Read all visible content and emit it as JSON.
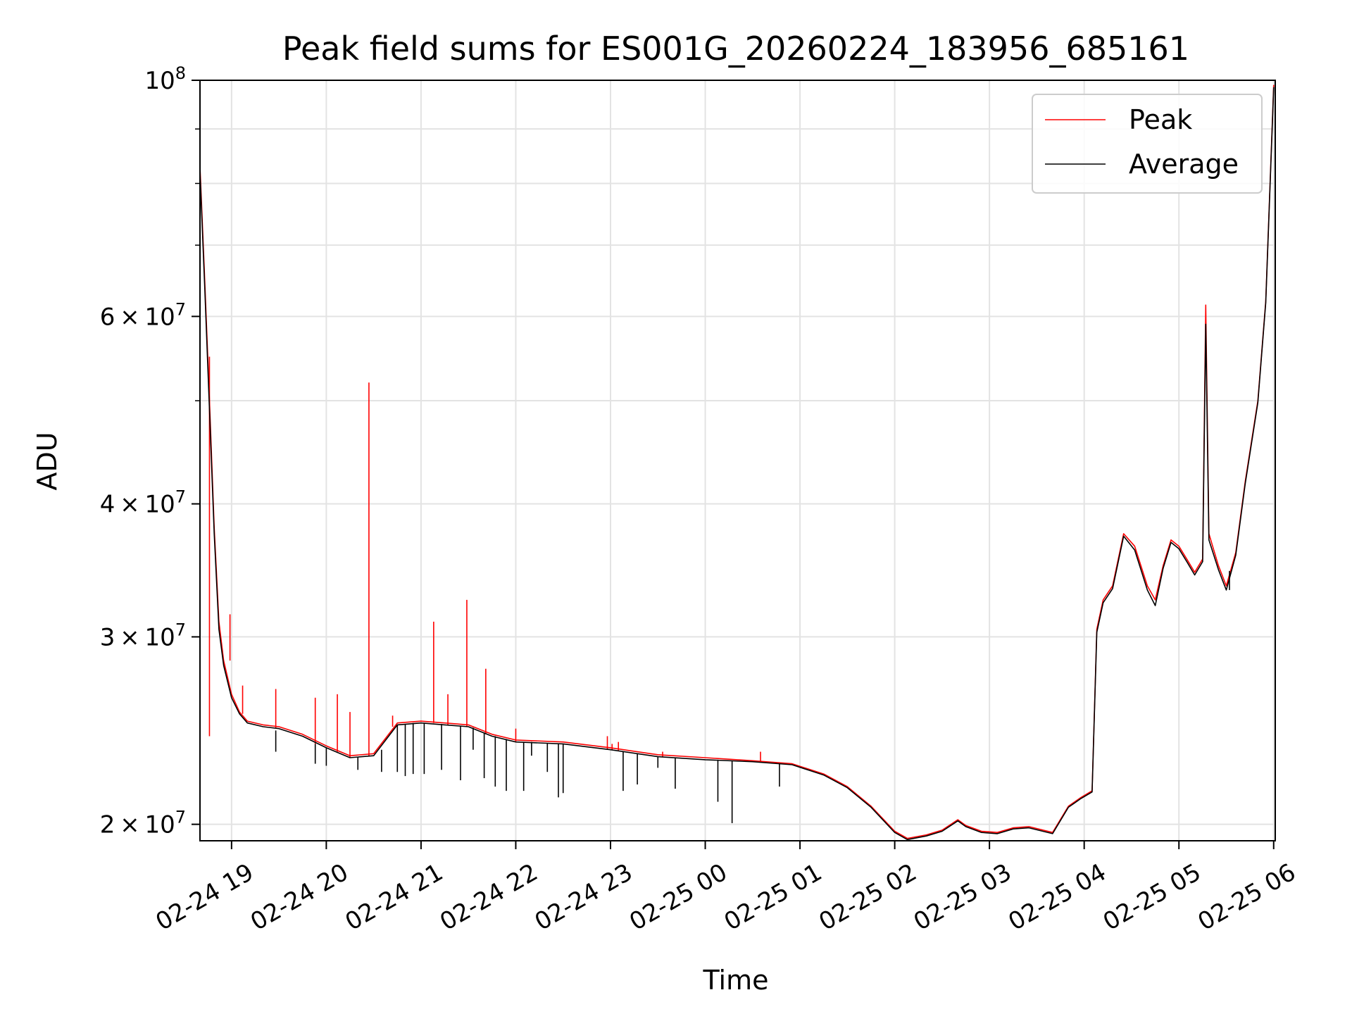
{
  "chart_data": {
    "type": "line",
    "title": "Peak field sums for ES001G_20260224_183956_685161",
    "xlabel": "Time",
    "ylabel": "ADU",
    "yscale": "log",
    "ylim": [
      19300000,
      100000000
    ],
    "xlim": [
      "2026-02-24 18:40",
      "2026-02-25 06:01"
    ],
    "grid": true,
    "legend_position": "top-right",
    "x_ticks": [
      {
        "t": "2026-02-24 19:00",
        "label": "02-24 19"
      },
      {
        "t": "2026-02-24 20:00",
        "label": "02-24 20"
      },
      {
        "t": "2026-02-24 21:00",
        "label": "02-24 21"
      },
      {
        "t": "2026-02-24 22:00",
        "label": "02-24 22"
      },
      {
        "t": "2026-02-24 23:00",
        "label": "02-24 23"
      },
      {
        "t": "2026-02-25 00:00",
        "label": "02-25 00"
      },
      {
        "t": "2026-02-25 01:00",
        "label": "02-25 01"
      },
      {
        "t": "2026-02-25 02:00",
        "label": "02-25 02"
      },
      {
        "t": "2026-02-25 03:00",
        "label": "02-25 03"
      },
      {
        "t": "2026-02-25 04:00",
        "label": "02-25 04"
      },
      {
        "t": "2026-02-25 05:00",
        "label": "02-25 05"
      },
      {
        "t": "2026-02-25 06:00",
        "label": "02-25 06"
      }
    ],
    "y_ticks": [
      {
        "value": 20000000,
        "mant": "2",
        "exp": "7"
      },
      {
        "value": 30000000,
        "mant": "3",
        "exp": "7"
      },
      {
        "value": 40000000,
        "mant": "4",
        "exp": "7"
      },
      {
        "value": 60000000,
        "mant": "6",
        "exp": "7"
      },
      {
        "value": 100000000,
        "base": "10",
        "exp": "8"
      }
    ],
    "y_minor": [
      50000000,
      70000000,
      80000000,
      90000000
    ],
    "series": [
      {
        "name": "Peak",
        "color": "#ff0000",
        "points": [
          [
            "2026-02-24 18:40",
            83000000
          ],
          [
            "2026-02-24 18:43",
            65000000
          ],
          [
            "2026-02-24 18:46",
            50000000
          ],
          [
            "2026-02-24 18:49",
            38000000
          ],
          [
            "2026-02-24 18:52",
            31000000
          ],
          [
            "2026-02-24 18:55",
            28500000
          ],
          [
            "2026-02-24 19:00",
            26500000
          ],
          [
            "2026-02-24 19:05",
            25500000
          ],
          [
            "2026-02-24 19:10",
            25000000
          ],
          [
            "2026-02-24 19:20",
            24800000
          ],
          [
            "2026-02-24 19:30",
            24700000
          ],
          [
            "2026-02-24 19:45",
            24300000
          ],
          [
            "2026-02-24 20:00",
            23700000
          ],
          [
            "2026-02-24 20:15",
            23200000
          ],
          [
            "2026-02-24 20:30",
            23300000
          ],
          [
            "2026-02-24 20:45",
            24900000
          ],
          [
            "2026-02-24 21:00",
            25000000
          ],
          [
            "2026-02-24 21:15",
            24900000
          ],
          [
            "2026-02-24 21:30",
            24800000
          ],
          [
            "2026-02-24 21:45",
            24300000
          ],
          [
            "2026-02-24 22:00",
            24000000
          ],
          [
            "2026-02-24 22:30",
            23900000
          ],
          [
            "2026-02-24 23:00",
            23600000
          ],
          [
            "2026-02-24 23:30",
            23250000
          ],
          [
            "2026-02-25 00:00",
            23100000
          ],
          [
            "2026-02-25 00:30",
            22950000
          ],
          [
            "2026-02-25 00:55",
            22800000
          ],
          [
            "2026-02-25 01:15",
            22300000
          ],
          [
            "2026-02-25 01:30",
            21700000
          ],
          [
            "2026-02-25 01:45",
            20800000
          ],
          [
            "2026-02-25 02:00",
            19700000
          ],
          [
            "2026-02-25 02:08",
            19400000
          ],
          [
            "2026-02-25 02:20",
            19550000
          ],
          [
            "2026-02-25 02:30",
            19750000
          ],
          [
            "2026-02-25 02:40",
            20200000
          ],
          [
            "2026-02-25 02:45",
            19950000
          ],
          [
            "2026-02-25 02:55",
            19700000
          ],
          [
            "2026-02-25 03:05",
            19650000
          ],
          [
            "2026-02-25 03:15",
            19850000
          ],
          [
            "2026-02-25 03:25",
            19900000
          ],
          [
            "2026-02-25 03:40",
            19650000
          ],
          [
            "2026-02-25 03:50",
            20800000
          ],
          [
            "2026-02-25 03:58",
            21200000
          ],
          [
            "2026-02-25 04:05",
            21500000
          ],
          [
            "2026-02-25 04:08",
            30500000
          ],
          [
            "2026-02-25 04:12",
            32500000
          ],
          [
            "2026-02-25 04:18",
            33500000
          ],
          [
            "2026-02-25 04:25",
            37500000
          ],
          [
            "2026-02-25 04:32",
            36500000
          ],
          [
            "2026-02-25 04:40",
            33500000
          ],
          [
            "2026-02-25 04:45",
            32500000
          ],
          [
            "2026-02-25 04:50",
            35000000
          ],
          [
            "2026-02-25 04:55",
            37000000
          ],
          [
            "2026-02-25 05:00",
            36500000
          ],
          [
            "2026-02-25 05:05",
            35500000
          ],
          [
            "2026-02-25 05:10",
            34500000
          ],
          [
            "2026-02-25 05:15",
            35500000
          ],
          [
            "2026-02-25 05:17",
            61500000
          ],
          [
            "2026-02-25 05:19",
            37500000
          ],
          [
            "2026-02-25 05:25",
            35000000
          ],
          [
            "2026-02-25 05:30",
            33500000
          ],
          [
            "2026-02-25 05:36",
            36000000
          ],
          [
            "2026-02-25 05:42",
            42000000
          ],
          [
            "2026-02-25 05:50",
            50000000
          ],
          [
            "2026-02-25 05:55",
            62000000
          ],
          [
            "2026-02-25 06:00",
            99000000
          ]
        ]
      },
      {
        "name": "Average",
        "color": "#000000",
        "points": [
          [
            "2026-02-24 18:40",
            82000000
          ],
          [
            "2026-02-24 18:43",
            64000000
          ],
          [
            "2026-02-24 18:46",
            49000000
          ],
          [
            "2026-02-24 18:49",
            37500000
          ],
          [
            "2026-02-24 18:52",
            30500000
          ],
          [
            "2026-02-24 18:55",
            28200000
          ],
          [
            "2026-02-24 19:00",
            26300000
          ],
          [
            "2026-02-24 19:05",
            25400000
          ],
          [
            "2026-02-24 19:10",
            24900000
          ],
          [
            "2026-02-24 19:20",
            24700000
          ],
          [
            "2026-02-24 19:30",
            24600000
          ],
          [
            "2026-02-24 19:45",
            24200000
          ],
          [
            "2026-02-24 20:00",
            23600000
          ],
          [
            "2026-02-24 20:15",
            23100000
          ],
          [
            "2026-02-24 20:30",
            23200000
          ],
          [
            "2026-02-24 20:45",
            24800000
          ],
          [
            "2026-02-24 21:00",
            24900000
          ],
          [
            "2026-02-24 21:15",
            24800000
          ],
          [
            "2026-02-24 21:30",
            24700000
          ],
          [
            "2026-02-24 21:45",
            24200000
          ],
          [
            "2026-02-24 22:00",
            23900000
          ],
          [
            "2026-02-24 22:30",
            23800000
          ],
          [
            "2026-02-24 23:00",
            23500000
          ],
          [
            "2026-02-24 23:30",
            23150000
          ],
          [
            "2026-02-25 00:00",
            23000000
          ],
          [
            "2026-02-25 00:30",
            22900000
          ],
          [
            "2026-02-25 00:55",
            22750000
          ],
          [
            "2026-02-25 01:15",
            22250000
          ],
          [
            "2026-02-25 01:30",
            21650000
          ],
          [
            "2026-02-25 01:45",
            20750000
          ],
          [
            "2026-02-25 02:00",
            19650000
          ],
          [
            "2026-02-25 02:08",
            19350000
          ],
          [
            "2026-02-25 02:20",
            19500000
          ],
          [
            "2026-02-25 02:30",
            19700000
          ],
          [
            "2026-02-25 02:40",
            20150000
          ],
          [
            "2026-02-25 02:45",
            19900000
          ],
          [
            "2026-02-25 02:55",
            19650000
          ],
          [
            "2026-02-25 03:05",
            19600000
          ],
          [
            "2026-02-25 03:15",
            19800000
          ],
          [
            "2026-02-25 03:25",
            19850000
          ],
          [
            "2026-02-25 03:40",
            19600000
          ],
          [
            "2026-02-25 03:50",
            20750000
          ],
          [
            "2026-02-25 03:58",
            21150000
          ],
          [
            "2026-02-25 04:05",
            21450000
          ],
          [
            "2026-02-25 04:08",
            30300000
          ],
          [
            "2026-02-25 04:12",
            32300000
          ],
          [
            "2026-02-25 04:18",
            33300000
          ],
          [
            "2026-02-25 04:25",
            37300000
          ],
          [
            "2026-02-25 04:32",
            36200000
          ],
          [
            "2026-02-25 04:40",
            33200000
          ],
          [
            "2026-02-25 04:45",
            32100000
          ],
          [
            "2026-02-25 04:50",
            34800000
          ],
          [
            "2026-02-25 04:55",
            36800000
          ],
          [
            "2026-02-25 05:00",
            36300000
          ],
          [
            "2026-02-25 05:05",
            35300000
          ],
          [
            "2026-02-25 05:10",
            34300000
          ],
          [
            "2026-02-25 05:15",
            35300000
          ],
          [
            "2026-02-25 05:17",
            59000000
          ],
          [
            "2026-02-25 05:19",
            37000000
          ],
          [
            "2026-02-25 05:25",
            34700000
          ],
          [
            "2026-02-25 05:30",
            33200000
          ],
          [
            "2026-02-25 05:36",
            35800000
          ],
          [
            "2026-02-25 05:42",
            41800000
          ],
          [
            "2026-02-25 05:50",
            49800000
          ],
          [
            "2026-02-25 05:55",
            61800000
          ],
          [
            "2026-02-25 06:00",
            98500000
          ]
        ]
      }
    ],
    "peak_spikes": [
      [
        "2026-02-24 18:46",
        24200000,
        55000000
      ],
      [
        "2026-02-24 18:59",
        28500000,
        31500000
      ],
      [
        "2026-02-24 19:07",
        25400000,
        27000000
      ],
      [
        "2026-02-24 19:28",
        24600000,
        26800000
      ],
      [
        "2026-02-24 19:53",
        23800000,
        26300000
      ],
      [
        "2026-02-24 20:07",
        23400000,
        26500000
      ],
      [
        "2026-02-24 20:15",
        23100000,
        25500000
      ],
      [
        "2026-02-24 20:27",
        23200000,
        52000000
      ],
      [
        "2026-02-24 20:42",
        24700000,
        25300000
      ],
      [
        "2026-02-24 21:08",
        24900000,
        31000000
      ],
      [
        "2026-02-24 21:17",
        24800000,
        26500000
      ],
      [
        "2026-02-24 21:29",
        24700000,
        32500000
      ],
      [
        "2026-02-24 21:41",
        24300000,
        28000000
      ],
      [
        "2026-02-24 22:00",
        23900000,
        24600000
      ],
      [
        "2026-02-24 22:58",
        23500000,
        24200000
      ],
      [
        "2026-02-24 23:01",
        23500000,
        23800000
      ],
      [
        "2026-02-24 23:05",
        23450000,
        23900000
      ],
      [
        "2026-02-24 23:33",
        23150000,
        23400000
      ],
      [
        "2026-02-25 00:35",
        22900000,
        23400000
      ]
    ],
    "average_dips": [
      [
        "2026-02-24 19:28",
        24500000,
        23400000
      ],
      [
        "2026-02-24 19:53",
        23800000,
        22800000
      ],
      [
        "2026-02-24 20:00",
        23600000,
        22700000
      ],
      [
        "2026-02-24 20:20",
        23150000,
        22500000
      ],
      [
        "2026-02-24 20:35",
        23500000,
        22400000
      ],
      [
        "2026-02-24 20:45",
        24800000,
        22400000
      ],
      [
        "2026-02-24 20:50",
        24850000,
        22200000
      ],
      [
        "2026-02-24 20:55",
        24900000,
        22300000
      ],
      [
        "2026-02-24 21:02",
        24900000,
        22300000
      ],
      [
        "2026-02-24 21:13",
        24850000,
        22500000
      ],
      [
        "2026-02-24 21:25",
        24750000,
        22000000
      ],
      [
        "2026-02-24 21:33",
        24650000,
        23500000
      ],
      [
        "2026-02-24 21:40",
        24400000,
        22100000
      ],
      [
        "2026-02-24 21:47",
        24200000,
        21700000
      ],
      [
        "2026-02-24 21:54",
        24050000,
        21500000
      ],
      [
        "2026-02-24 22:05",
        23900000,
        21500000
      ],
      [
        "2026-02-24 22:10",
        23900000,
        23200000
      ],
      [
        "2026-02-24 22:20",
        23850000,
        22400000
      ],
      [
        "2026-02-24 22:27",
        23800000,
        21200000
      ],
      [
        "2026-02-24 22:30",
        23800000,
        21400000
      ],
      [
        "2026-02-24 23:08",
        23400000,
        21500000
      ],
      [
        "2026-02-24 23:17",
        23300000,
        21800000
      ],
      [
        "2026-02-24 23:30",
        23150000,
        22600000
      ],
      [
        "2026-02-24 23:41",
        23100000,
        21600000
      ],
      [
        "2026-02-25 00:08",
        23000000,
        21000000
      ],
      [
        "2026-02-25 00:17",
        22950000,
        20050000
      ],
      [
        "2026-02-25 00:47",
        22800000,
        21700000
      ],
      [
        "2026-02-25 05:32",
        33200000,
        34600000
      ]
    ]
  }
}
